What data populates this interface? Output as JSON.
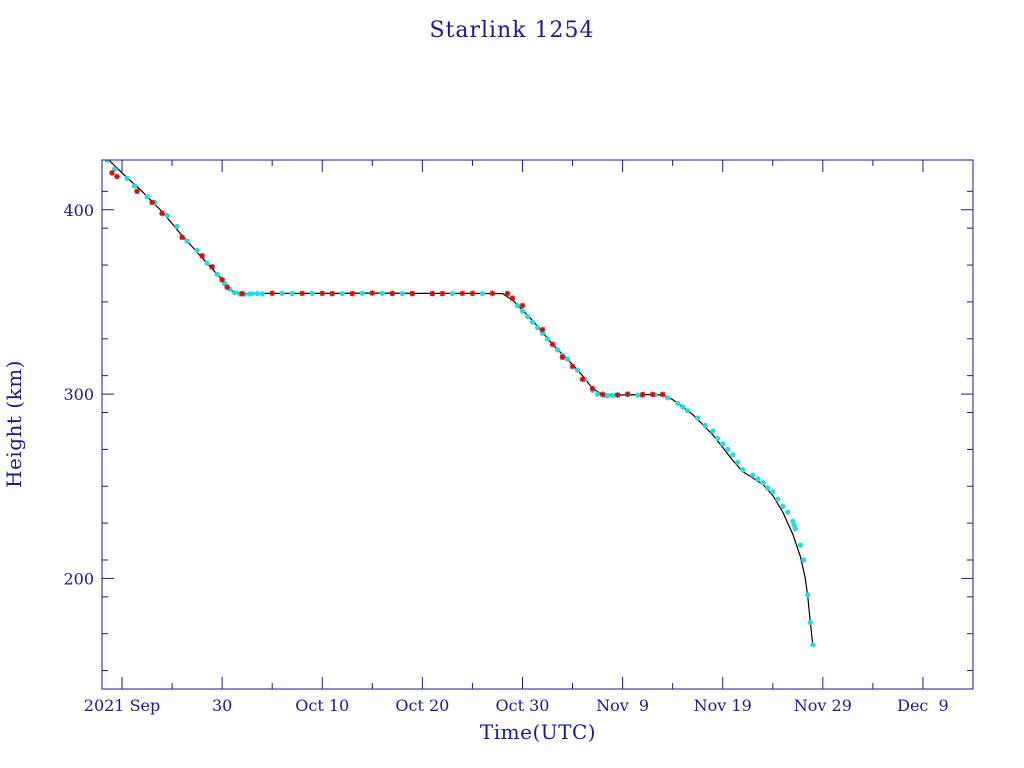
{
  "colors": {
    "axis": "#1a1a99",
    "text": "#1a1a99",
    "curve": "#000000",
    "marker_a": "#22dddd",
    "marker_b": "#cc1111"
  },
  "chart_data": {
    "type": "scatter",
    "title": "Starlink 1254",
    "xlabel": "Time(UTC)",
    "ylabel": "Height (km)",
    "xlim": [
      "2021-09-18",
      "2021-12-14"
    ],
    "ylim": [
      140,
      427
    ],
    "x_ticks": [
      {
        "date": "2021-09-20",
        "label": "2021 Sep"
      },
      {
        "date": "2021-09-30",
        "label": "30"
      },
      {
        "date": "2021-10-10",
        "label": "Oct 10"
      },
      {
        "date": "2021-10-20",
        "label": "Oct 20"
      },
      {
        "date": "2021-10-30",
        "label": "Oct 30"
      },
      {
        "date": "2021-11-09",
        "label": "Nov  9"
      },
      {
        "date": "2021-11-19",
        "label": "Nov 19"
      },
      {
        "date": "2021-11-29",
        "label": "Nov 29"
      },
      {
        "date": "2021-12-09",
        "label": "Dec  9"
      }
    ],
    "y_ticks": [
      200,
      300,
      400
    ],
    "grid": false,
    "series": [
      {
        "marker": "line",
        "points": [
          [
            "2021-09-18 12:00",
            428
          ],
          [
            "2021-09-20",
            420
          ],
          [
            "2021-09-22",
            410
          ],
          [
            "2021-09-24",
            399
          ],
          [
            "2021-09-26",
            386
          ],
          [
            "2021-09-28",
            374
          ],
          [
            "2021-09-30",
            362
          ],
          [
            "2021-10-01",
            356
          ],
          [
            "2021-10-02",
            354.5
          ],
          [
            "2021-10-05",
            354.7
          ],
          [
            "2021-10-10",
            354.6
          ],
          [
            "2021-10-15",
            354.8
          ],
          [
            "2021-10-20",
            354.6
          ],
          [
            "2021-10-25",
            354.6
          ],
          [
            "2021-10-28",
            354.5
          ],
          [
            "2021-10-29",
            351
          ],
          [
            "2021-10-31",
            340
          ],
          [
            "2021-11-02",
            327
          ],
          [
            "2021-11-04",
            316
          ],
          [
            "2021-11-05",
            310
          ],
          [
            "2021-11-06",
            303
          ],
          [
            "2021-11-07",
            299.8
          ],
          [
            "2021-11-09",
            299.5
          ],
          [
            "2021-11-12",
            299.8
          ],
          [
            "2021-11-13",
            299.5
          ],
          [
            "2021-11-14",
            297
          ],
          [
            "2021-11-16",
            289
          ],
          [
            "2021-11-18",
            278
          ],
          [
            "2021-11-20",
            264
          ],
          [
            "2021-11-21",
            258
          ],
          [
            "2021-11-23",
            251
          ],
          [
            "2021-11-24",
            245
          ],
          [
            "2021-11-25",
            236
          ],
          [
            "2021-11-26",
            224
          ],
          [
            "2021-11-26 18:00",
            212
          ],
          [
            "2021-11-27 06:00",
            200
          ],
          [
            "2021-11-27 12:00",
            190
          ],
          [
            "2021-11-27 18:00",
            176
          ],
          [
            "2021-11-28",
            164
          ]
        ]
      },
      {
        "marker": "cyan-dot",
        "points": [
          [
            "2021-09-18 12:00",
            427
          ],
          [
            "2021-09-19 06:00",
            422
          ],
          [
            "2021-09-20 12:00",
            417
          ],
          [
            "2021-09-21 06:00",
            413
          ],
          [
            "2021-09-22 12:00",
            407
          ],
          [
            "2021-09-23 06:00",
            404
          ],
          [
            "2021-09-24 12:00",
            397
          ],
          [
            "2021-09-25 12:00",
            391
          ],
          [
            "2021-09-26 12:00",
            383
          ],
          [
            "2021-09-27 12:00",
            378
          ],
          [
            "2021-09-28 12:00",
            371
          ],
          [
            "2021-09-29 12:00",
            365
          ],
          [
            "2021-09-30 06:00",
            360
          ],
          [
            "2021-09-30 18:00",
            357
          ],
          [
            "2021-10-01 06:00",
            355
          ],
          [
            "2021-10-01 18:00",
            354.3
          ],
          [
            "2021-10-02 06:00",
            354.2
          ],
          [
            "2021-10-02 18:00",
            354.3
          ],
          [
            "2021-10-03",
            354.4
          ],
          [
            "2021-10-03 12:00",
            354.5
          ],
          [
            "2021-10-04",
            354.4
          ],
          [
            "2021-10-06",
            354.6
          ],
          [
            "2021-10-07",
            354.5
          ],
          [
            "2021-10-09",
            354.6
          ],
          [
            "2021-10-12",
            354.5
          ],
          [
            "2021-10-14",
            354.6
          ],
          [
            "2021-10-16",
            354.6
          ],
          [
            "2021-10-17",
            354.5
          ],
          [
            "2021-10-18",
            354.5
          ],
          [
            "2021-10-19",
            354.6
          ],
          [
            "2021-10-21",
            354.5
          ],
          [
            "2021-10-23",
            354.5
          ],
          [
            "2021-10-26",
            354.5
          ],
          [
            "2021-10-29 12:00",
            348
          ],
          [
            "2021-10-30",
            345
          ],
          [
            "2021-10-30 12:00",
            342
          ],
          [
            "2021-10-31",
            339
          ],
          [
            "2021-10-31 12:00",
            336
          ],
          [
            "2021-11-01",
            333
          ],
          [
            "2021-11-01 12:00",
            330
          ],
          [
            "2021-11-02 12:00",
            324
          ],
          [
            "2021-11-03",
            321
          ],
          [
            "2021-11-03 12:00",
            319
          ],
          [
            "2021-11-04 12:00",
            313
          ],
          [
            "2021-11-05 06:00",
            308
          ],
          [
            "2021-11-06",
            302
          ],
          [
            "2021-11-06 12:00",
            300
          ],
          [
            "2021-11-07 06:00",
            299.3
          ],
          [
            "2021-11-07 12:00",
            299.2
          ],
          [
            "2021-11-08",
            299.3
          ],
          [
            "2021-11-09 12:00",
            299.6
          ],
          [
            "2021-11-10 12:00",
            299.4
          ],
          [
            "2021-11-11",
            299.5
          ],
          [
            "2021-11-12 06:00",
            299.6
          ],
          [
            "2021-11-13 12:00",
            298
          ],
          [
            "2021-11-14 12:00",
            295
          ],
          [
            "2021-11-15",
            293
          ],
          [
            "2021-11-15 12:00",
            291
          ],
          [
            "2021-11-16 12:00",
            287
          ],
          [
            "2021-11-17 06:00",
            283
          ],
          [
            "2021-11-18",
            280
          ],
          [
            "2021-11-18 12:00",
            276
          ],
          [
            "2021-11-19",
            273
          ],
          [
            "2021-11-19 12:00",
            270
          ],
          [
            "2021-11-20",
            267
          ],
          [
            "2021-11-20 12:00",
            263
          ],
          [
            "2021-11-21",
            259
          ],
          [
            "2021-11-22",
            256
          ],
          [
            "2021-11-22 12:00",
            254
          ],
          [
            "2021-11-23",
            252
          ],
          [
            "2021-11-23 12:00",
            249
          ],
          [
            "2021-11-24",
            247
          ],
          [
            "2021-11-24 12:00",
            243
          ],
          [
            "2021-11-25",
            239
          ],
          [
            "2021-11-25 12:00",
            236
          ],
          [
            "2021-11-26",
            231
          ],
          [
            "2021-11-26 03:00",
            229
          ],
          [
            "2021-11-26 06:00",
            227
          ],
          [
            "2021-11-26 18:00",
            218
          ],
          [
            "2021-11-27 02:00",
            210
          ],
          [
            "2021-11-27 12:00",
            191
          ],
          [
            "2021-11-27 18:00",
            176
          ],
          [
            "2021-11-28",
            164
          ]
        ]
      },
      {
        "marker": "red-star",
        "points": [
          [
            "2021-09-19",
            420
          ],
          [
            "2021-09-19 12:00",
            418
          ],
          [
            "2021-09-21 12:00",
            410
          ],
          [
            "2021-09-23",
            404
          ],
          [
            "2021-09-24",
            398
          ],
          [
            "2021-09-26",
            385
          ],
          [
            "2021-09-28",
            375
          ],
          [
            "2021-09-29",
            369
          ],
          [
            "2021-09-30",
            362
          ],
          [
            "2021-09-30 12:00",
            358
          ],
          [
            "2021-10-02",
            354.5
          ],
          [
            "2021-10-05",
            354.7
          ],
          [
            "2021-10-08",
            354.6
          ],
          [
            "2021-10-10",
            354.6
          ],
          [
            "2021-10-11",
            354.5
          ],
          [
            "2021-10-13",
            354.5
          ],
          [
            "2021-10-15",
            354.8
          ],
          [
            "2021-10-17",
            354.6
          ],
          [
            "2021-10-19",
            354.5
          ],
          [
            "2021-10-21",
            354.5
          ],
          [
            "2021-10-22",
            354.5
          ],
          [
            "2021-10-24",
            354.6
          ],
          [
            "2021-10-25",
            354.6
          ],
          [
            "2021-10-27",
            354.6
          ],
          [
            "2021-10-28 12:00",
            354.5
          ],
          [
            "2021-10-29",
            352
          ],
          [
            "2021-10-30",
            348
          ],
          [
            "2021-11-01",
            335
          ],
          [
            "2021-11-02",
            327
          ],
          [
            "2021-11-03",
            320
          ],
          [
            "2021-11-04",
            315
          ],
          [
            "2021-11-05",
            308
          ],
          [
            "2021-11-06",
            303
          ],
          [
            "2021-11-07",
            299.8
          ],
          [
            "2021-11-08 12:00",
            299.5
          ],
          [
            "2021-11-09 12:00",
            300
          ],
          [
            "2021-11-11",
            299.7
          ],
          [
            "2021-11-12",
            299.8
          ],
          [
            "2021-11-13",
            299.8
          ]
        ]
      }
    ]
  }
}
